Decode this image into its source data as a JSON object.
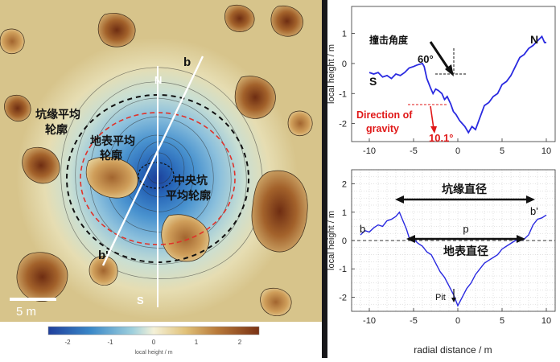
{
  "map": {
    "labels": {
      "rim_avg": [
        "坑缘平均",
        "轮廓"
      ],
      "surface_avg": [
        "地表平均",
        "轮廓"
      ],
      "center_pit_avg": [
        "中央坑",
        "平均轮廓"
      ],
      "point_b": "b",
      "point_b_prime": "b'",
      "north": "N",
      "south": "S",
      "scale_bar": "5 m"
    },
    "colorbar": {
      "ticks": [
        "-2",
        "-1",
        "0",
        "1",
        "2"
      ],
      "label": "local height / m"
    }
  },
  "chart_data": [
    {
      "type": "line",
      "ylabel": "local height / m",
      "xlim": [
        -12,
        11
      ],
      "ylim": [
        -2.6,
        1.9
      ],
      "x_ticks": [
        "-10",
        "-5",
        "0",
        "5",
        "10"
      ],
      "y_ticks": [
        "1",
        "0",
        "-1",
        "-2"
      ],
      "series": [
        {
          "x": [
            -10,
            -9.5,
            -9,
            -8.5,
            -8,
            -7.5,
            -7,
            -6.5,
            -6,
            -5.5,
            -5,
            -4.6,
            -4,
            -3.8,
            -3.5,
            -3.1,
            -2.8,
            -2.5,
            -2.2,
            -1.8,
            -1.5,
            -1.2,
            -0.8,
            -0.5,
            -0.2,
            0.2,
            0.5,
            0.8,
            1.2,
            1.6,
            2,
            2.5,
            3,
            3.5,
            4,
            4.5,
            5,
            5.5,
            6,
            6.5,
            7,
            7.5,
            8,
            8.5,
            9,
            9.5,
            9.8,
            10
          ],
          "y": [
            -0.3,
            -0.35,
            -0.3,
            -0.45,
            -0.4,
            -0.5,
            -0.35,
            -0.4,
            -0.3,
            -0.15,
            -0.1,
            -0.05,
            0.0,
            -0.1,
            -0.5,
            -0.8,
            -1.0,
            -0.85,
            -0.9,
            -1.0,
            -1.2,
            -1.1,
            -1.35,
            -1.6,
            -1.7,
            -1.9,
            -2.0,
            -2.1,
            -2.3,
            -2.1,
            -2.2,
            -1.8,
            -1.4,
            -1.3,
            -1.1,
            -1.0,
            -0.7,
            -0.6,
            -0.4,
            -0.1,
            0.2,
            0.3,
            0.5,
            0.6,
            0.75,
            0.9,
            0.7,
            0.7
          ]
        }
      ],
      "annotations": {
        "south": "S",
        "north": "N",
        "impact_label": "撞击角度",
        "impact_angle": "60°",
        "gravity_label": [
          "Direction of",
          "gravity"
        ],
        "gravity_angle": "10.1°"
      },
      "colors": {
        "line": "#2a2ae0",
        "accent": "#e01818"
      }
    },
    {
      "type": "line",
      "xlabel": "radial distance / m",
      "ylabel": "local height / m",
      "xlim": [
        -12,
        11
      ],
      "ylim": [
        -2.5,
        2.5
      ],
      "x_ticks": [
        "-10",
        "-5",
        "0",
        "5",
        "10"
      ],
      "y_ticks": [
        "2",
        "1",
        "0",
        "-1",
        "-2"
      ],
      "series": [
        {
          "x": [
            -11,
            -10.5,
            -10,
            -9.5,
            -9,
            -8.5,
            -8,
            -7.5,
            -7,
            -6.6,
            -6.2,
            -5.8,
            -5.5,
            -5,
            -4.5,
            -4,
            -3.5,
            -3,
            -2.5,
            -2,
            -1.5,
            -1,
            -0.5,
            0,
            0.5,
            1,
            1.5,
            2,
            2.5,
            3,
            3.5,
            4,
            4.5,
            5,
            5.5,
            6,
            6.5,
            7,
            7.5,
            8,
            8.5,
            9,
            9.5,
            10
          ],
          "y": [
            0.2,
            0.35,
            0.3,
            0.45,
            0.55,
            0.5,
            0.7,
            0.75,
            0.85,
            1.0,
            0.7,
            0.4,
            0.1,
            0.05,
            -0.1,
            -0.2,
            -0.4,
            -0.5,
            -0.8,
            -1.1,
            -1.3,
            -1.6,
            -1.9,
            -2.3,
            -2.0,
            -1.7,
            -1.5,
            -1.2,
            -1.0,
            -0.8,
            -0.7,
            -0.6,
            -0.5,
            -0.3,
            -0.2,
            -0.1,
            0.0,
            0.0,
            0.05,
            0.2,
            0.55,
            0.75,
            0.8,
            0.9
          ]
        }
      ],
      "annotations": {
        "rim_diameter": "坑缘直径",
        "surface_diameter": "地表直径",
        "b": "b",
        "b_prime": "b'",
        "p": "p",
        "pit": "Pit"
      },
      "colors": {
        "line": "#2a2ae0"
      }
    }
  ]
}
